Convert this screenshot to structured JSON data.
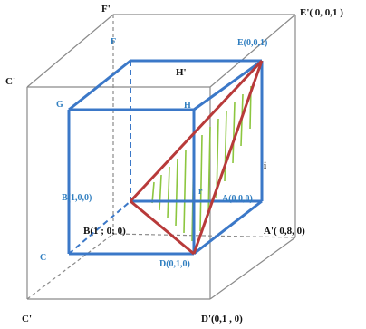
{
  "colors": {
    "outer_cube": "#8a8a8a",
    "inner_cube": "#3b78c8",
    "triangle": "#b83a3a",
    "hatch": "#8cc63f",
    "black_label": "#111111",
    "blue_label": "#2f7ec0"
  },
  "labels": {
    "outer": {
      "F_prime": "F'",
      "E_prime": "E'( 0, 0,1 )",
      "C_prime_upper": "C'",
      "H_prime": "H'",
      "B_prime": "B(1 ; 0; 0)",
      "A_prime": "A'( 0,8, 0)",
      "C_prime_lower": "C'",
      "D_prime": "D'(0,1 , 0)",
      "i_mark": "i"
    },
    "inner": {
      "F": "F",
      "E": "E(0,0,1)",
      "G": "G",
      "H": "H",
      "B": "B(1,0,0)",
      "A": "A(0,0,0)",
      "C": "C",
      "D": "D(0,1,0)",
      "r_mark": "r"
    }
  }
}
